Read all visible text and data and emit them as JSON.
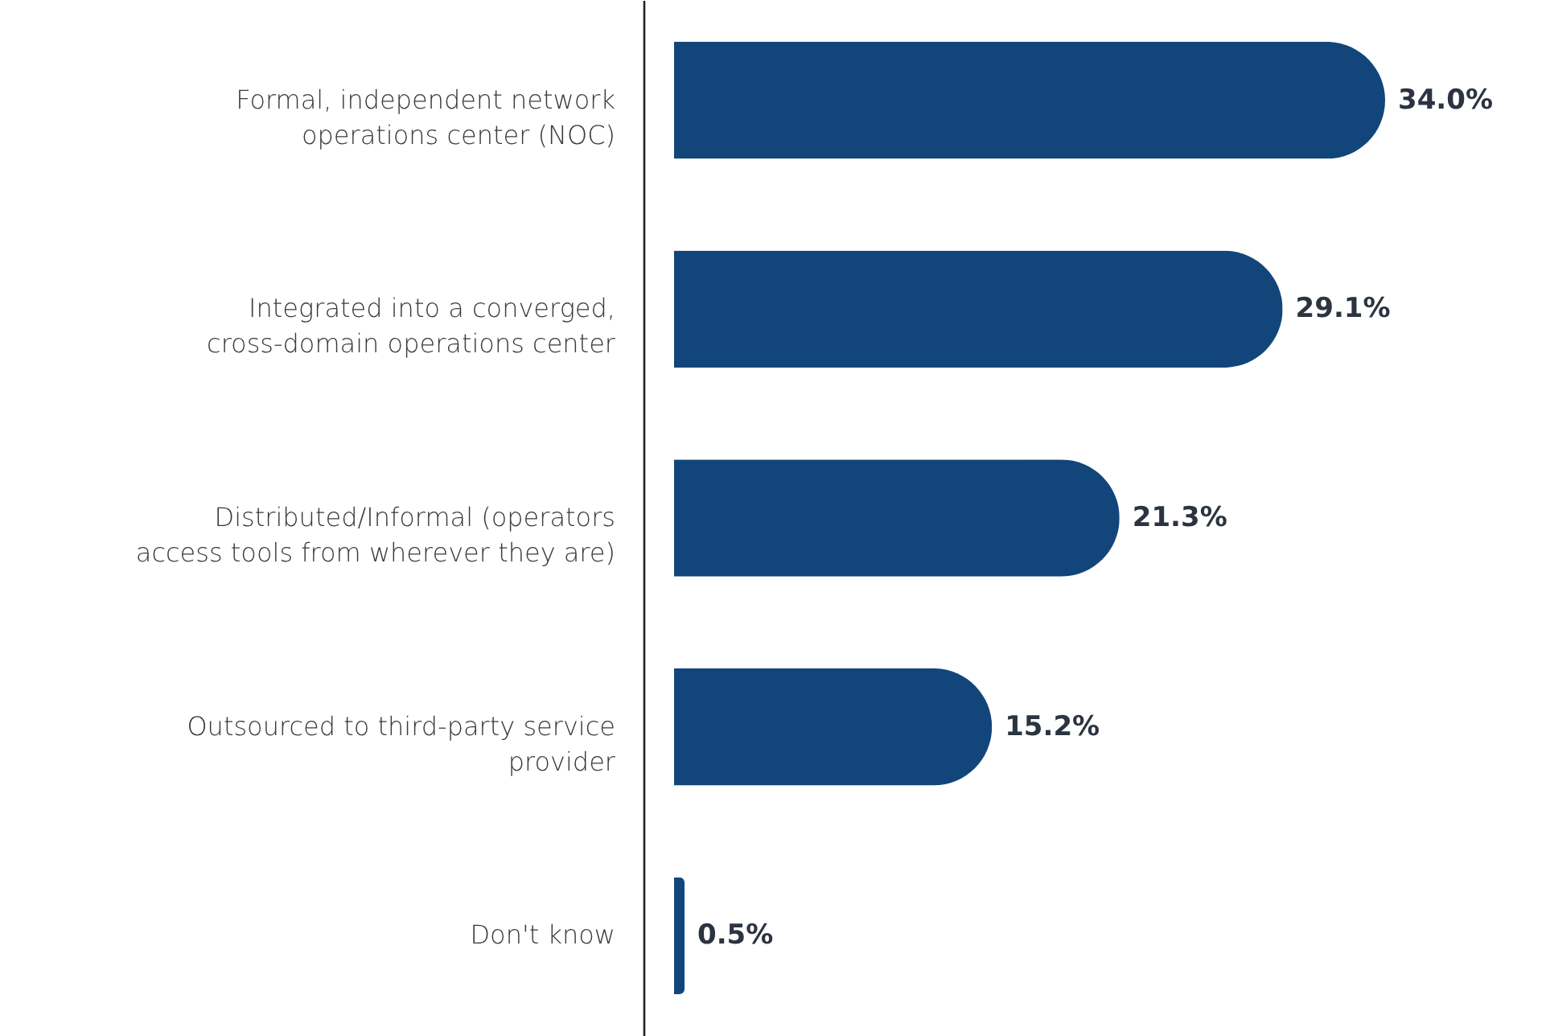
{
  "chart_data": {
    "type": "bar",
    "orientation": "horizontal",
    "color": "#12457a",
    "value_labels": [
      "34.0%",
      "29.1%",
      "21.3%",
      "15.2%",
      "0.5%"
    ],
    "categories": [
      "Formal, independent network operations center (NOC)",
      "Integrated into a converged, cross-domain operations center",
      "Distributed/Informal (operators access tools from wherever they are)",
      "Outsourced to third-party service provider",
      "Don't know"
    ],
    "values": [
      34.0,
      29.1,
      21.3,
      15.2,
      0.5
    ]
  }
}
